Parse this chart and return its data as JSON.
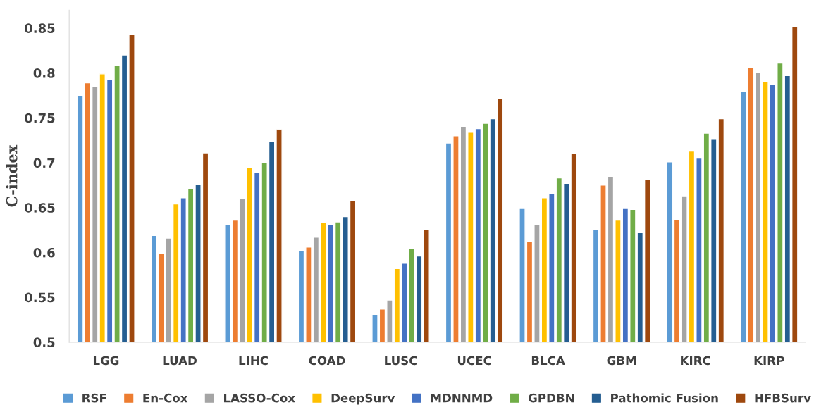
{
  "chart_data": {
    "type": "bar",
    "ylabel": "C-index",
    "categories": [
      "LGG",
      "LUAD",
      "LIHC",
      "COAD",
      "LUSC",
      "UCEC",
      "BLCA",
      "GBM",
      "KIRC",
      "KIRP"
    ],
    "series": [
      {
        "name": "RSF",
        "color": "#5b9bd5",
        "values": [
          0.775,
          0.619,
          0.631,
          0.602,
          0.531,
          0.722,
          0.649,
          0.626,
          0.701,
          0.779
        ]
      },
      {
        "name": "En-Cox",
        "color": "#ed7d31",
        "values": [
          0.789,
          0.599,
          0.636,
          0.606,
          0.537,
          0.73,
          0.612,
          0.675,
          0.637,
          0.806
        ]
      },
      {
        "name": "LASSO-Cox",
        "color": "#a5a5a5",
        "values": [
          0.785,
          0.616,
          0.66,
          0.617,
          0.547,
          0.74,
          0.631,
          0.684,
          0.663,
          0.801
        ]
      },
      {
        "name": "DeepSurv",
        "color": "#ffc000",
        "values": [
          0.799,
          0.654,
          0.695,
          0.633,
          0.582,
          0.734,
          0.661,
          0.636,
          0.713,
          0.79
        ]
      },
      {
        "name": "MDNNMD",
        "color": "#4472c4",
        "values": [
          0.793,
          0.661,
          0.689,
          0.631,
          0.588,
          0.738,
          0.666,
          0.649,
          0.705,
          0.787
        ]
      },
      {
        "name": "GPDBN",
        "color": "#70ad47",
        "values": [
          0.808,
          0.671,
          0.7,
          0.634,
          0.604,
          0.744,
          0.683,
          0.648,
          0.733,
          0.811
        ]
      },
      {
        "name": "Pathomic Fusion",
        "color": "#255e91",
        "values": [
          0.82,
          0.676,
          0.724,
          0.64,
          0.596,
          0.749,
          0.677,
          0.622,
          0.726,
          0.797
        ]
      },
      {
        "name": "HFBSurv",
        "color": "#9e480e",
        "values": [
          0.843,
          0.711,
          0.737,
          0.658,
          0.626,
          0.772,
          0.71,
          0.681,
          0.749,
          0.852
        ]
      }
    ],
    "ylim": [
      0.5,
      0.87
    ],
    "yticks": [
      0.5,
      0.55,
      0.6,
      0.65,
      0.7,
      0.75,
      0.8,
      0.85
    ],
    "grid": false,
    "legend": "bottom"
  }
}
